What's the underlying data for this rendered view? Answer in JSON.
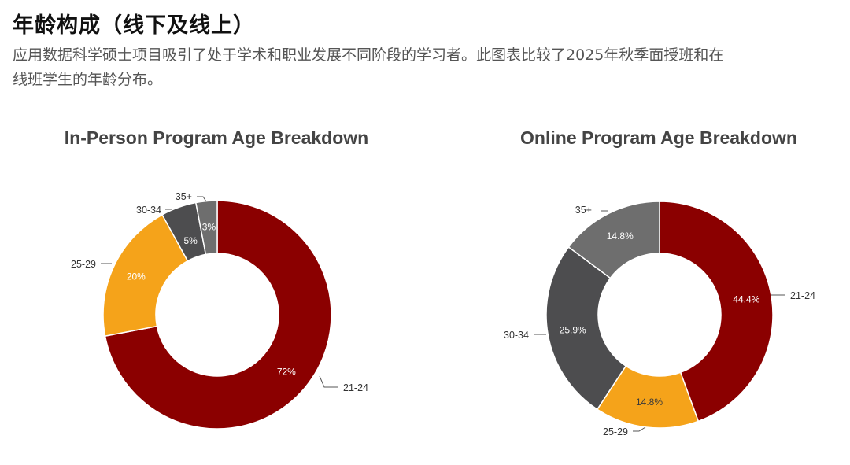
{
  "header": {
    "title": "年龄构成（线下及线上）",
    "description": "应用数据科学硕士项目吸引了处于学术和职业发展不同阶段的学习者。此图表比较了2025年秋季面授班和在线班学生的年龄分布。"
  },
  "colors": {
    "21-24": "#8b0000",
    "25-29": "#f5a31a",
    "30-34": "#4d4d4f",
    "35+": "#6e6e6e"
  },
  "chart_data": [
    {
      "type": "pie",
      "donut": true,
      "title": "In-Person Program Age Breakdown",
      "categories": [
        "21-24",
        "25-29",
        "30-34",
        "35+"
      ],
      "values": [
        72,
        20,
        5,
        3
      ],
      "labels": [
        "72%",
        "20%",
        "5%",
        "3%"
      ]
    },
    {
      "type": "pie",
      "donut": true,
      "title": "Online Program Age Breakdown",
      "categories": [
        "21-24",
        "25-29",
        "30-34",
        "35+"
      ],
      "values": [
        44.4,
        14.8,
        25.9,
        14.8
      ],
      "labels": [
        "44.4%",
        "14.8%",
        "25.9%",
        "14.8%"
      ]
    }
  ]
}
